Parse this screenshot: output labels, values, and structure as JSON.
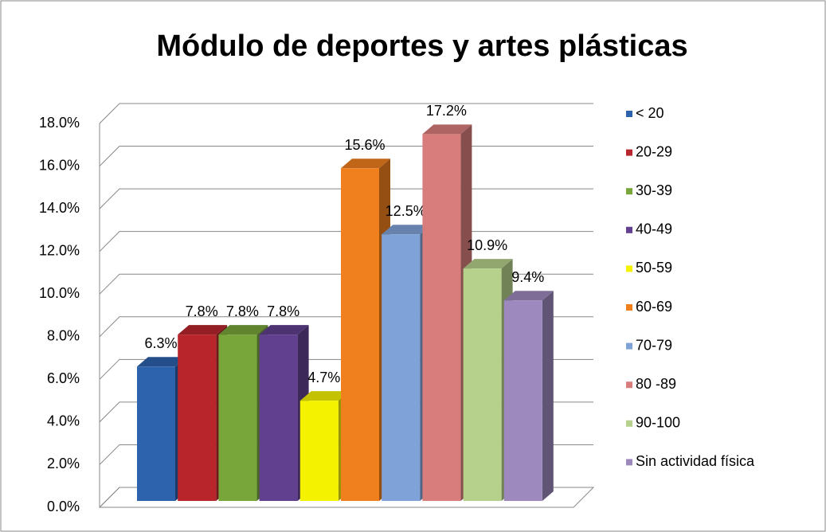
{
  "chart_data": {
    "type": "bar3d",
    "title": "Módulo de deportes y artes plásticas",
    "categories": [
      "< 20",
      "20-29",
      "30-39",
      "40-49",
      "50-59",
      "60-69",
      "70-79",
      "80 -89",
      "90-100",
      "Sin actividad física"
    ],
    "values": [
      6.3,
      7.8,
      7.8,
      7.8,
      4.7,
      15.6,
      12.5,
      17.2,
      10.9,
      9.4
    ],
    "value_labels": [
      "6.3%",
      "7.8%",
      "7.8%",
      "7.8%",
      "4.7%",
      "15.6%",
      "12.5%",
      "17.2%",
      "10.9%",
      "9.4%"
    ],
    "colors": [
      "#2d62ad",
      "#b8262c",
      "#79a63b",
      "#61408f",
      "#f5f200",
      "#f0801e",
      "#7fa3d8",
      "#d87d7c",
      "#b6d18c",
      "#9d89bd"
    ],
    "ylim": [
      0,
      18
    ],
    "yticks": [
      {
        "value": 0,
        "label": "0.0%"
      },
      {
        "value": 2,
        "label": "2.0%"
      },
      {
        "value": 4,
        "label": "4.0%"
      },
      {
        "value": 6,
        "label": "6.0%"
      },
      {
        "value": 8,
        "label": "8.0%"
      },
      {
        "value": 10,
        "label": "10.0%"
      },
      {
        "value": 12,
        "label": "12.0%"
      },
      {
        "value": 14,
        "label": "14.0%"
      },
      {
        "value": 16,
        "label": "16.0%"
      },
      {
        "value": 18,
        "label": "18.0%"
      }
    ],
    "grid": true,
    "legend": "right"
  }
}
